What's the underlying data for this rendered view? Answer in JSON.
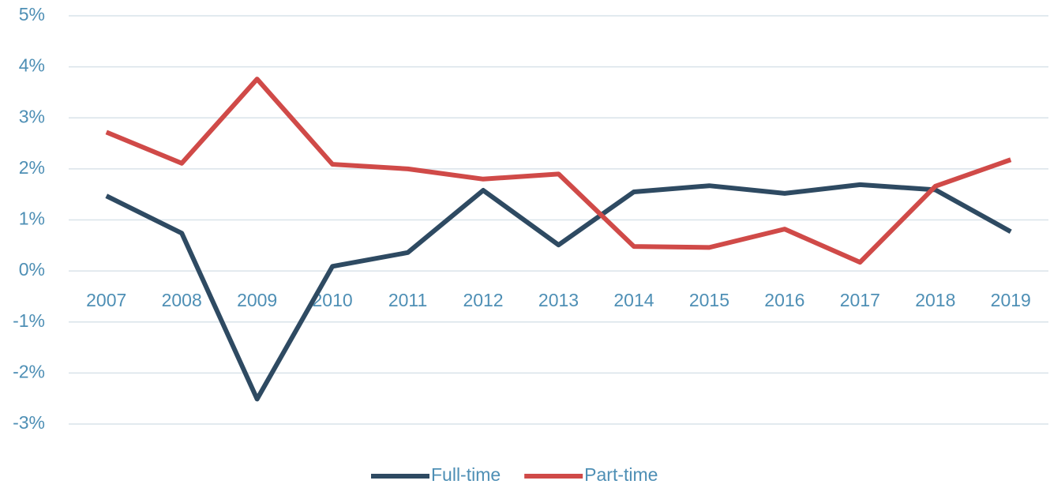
{
  "chart_data": {
    "type": "line",
    "categories": [
      "2007",
      "2008",
      "2009",
      "2010",
      "2011",
      "2012",
      "2013",
      "2014",
      "2015",
      "2016",
      "2017",
      "2018",
      "2019"
    ],
    "series": [
      {
        "name": "Full-time",
        "color": "#2e4a62",
        "values": [
          1.47,
          0.74,
          -2.51,
          0.09,
          0.36,
          1.58,
          0.51,
          1.55,
          1.67,
          1.52,
          1.69,
          1.59,
          0.77
        ]
      },
      {
        "name": "Part-time",
        "color": "#d04a48",
        "values": [
          2.72,
          2.11,
          3.76,
          2.09,
          2.0,
          1.8,
          1.9,
          0.48,
          0.46,
          0.82,
          0.17,
          1.66,
          2.18
        ]
      }
    ],
    "ylim": [
      -3,
      5
    ],
    "yticks": [
      {
        "value": -3,
        "label": "-3%"
      },
      {
        "value": -2,
        "label": "-2%"
      },
      {
        "value": -1,
        "label": "-1%"
      },
      {
        "value": 0,
        "label": "0%"
      },
      {
        "value": 1,
        "label": "1%"
      },
      {
        "value": 2,
        "label": "2%"
      },
      {
        "value": 3,
        "label": "3%"
      },
      {
        "value": 4,
        "label": "4%"
      },
      {
        "value": 5,
        "label": "5%"
      }
    ],
    "grid": true,
    "legend": "bottom"
  }
}
